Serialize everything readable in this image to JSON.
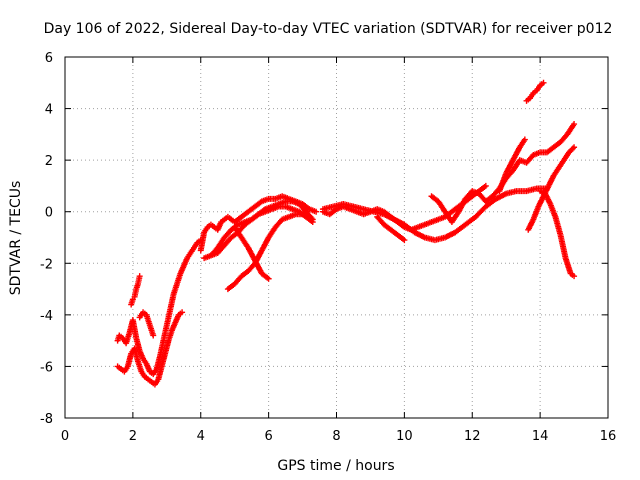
{
  "chart_data": {
    "type": "scatter",
    "title": "Day 106 of 2022, Sidereal Day-to-day VTEC variation (SDTVAR) for receiver p012",
    "xlabel": "GPS time / hours",
    "ylabel": "SDTVAR / TECUs",
    "xlim": [
      0,
      16
    ],
    "ylim": [
      -8,
      6
    ],
    "xticks": [
      0,
      2,
      4,
      6,
      8,
      10,
      12,
      14,
      16
    ],
    "yticks": [
      -8,
      -6,
      -4,
      -2,
      0,
      2,
      4,
      6
    ],
    "grid": true,
    "marker": "plus",
    "color": "#ff0000",
    "series": [
      {
        "x": [
          1.55,
          1.6,
          1.7,
          1.8,
          1.9,
          2.0,
          2.1,
          2.2,
          2.3,
          2.4,
          2.5,
          2.6,
          2.7,
          2.8,
          2.9,
          3.0,
          3.1,
          3.2,
          3.3,
          3.4,
          3.5,
          3.6,
          3.7,
          3.8,
          3.9,
          4.0
        ],
        "y": [
          -5.0,
          -4.8,
          -4.9,
          -5.1,
          -4.7,
          -4.2,
          -4.9,
          -5.4,
          -5.7,
          -5.9,
          -6.2,
          -6.3,
          -6.1,
          -5.6,
          -5.0,
          -4.4,
          -3.8,
          -3.2,
          -2.8,
          -2.4,
          -2.1,
          -1.8,
          -1.6,
          -1.4,
          -1.2,
          -1.1
        ]
      },
      {
        "x": [
          1.55,
          1.65,
          1.75,
          1.85,
          1.95,
          2.05,
          2.15,
          2.25,
          2.35,
          2.45,
          2.55,
          2.65,
          2.75,
          2.85,
          2.95,
          3.05,
          3.15,
          3.25,
          3.35,
          3.45
        ],
        "y": [
          -6.0,
          -6.1,
          -6.2,
          -6.0,
          -5.5,
          -5.3,
          -5.8,
          -6.2,
          -6.4,
          -6.5,
          -6.6,
          -6.7,
          -6.5,
          -6.0,
          -5.5,
          -5.0,
          -4.6,
          -4.3,
          -4.0,
          -3.9
        ]
      },
      {
        "x": [
          1.95,
          2.0,
          2.05,
          2.1,
          2.15,
          2.2
        ],
        "y": [
          -3.6,
          -3.4,
          -3.3,
          -3.0,
          -2.8,
          -2.5
        ]
      },
      {
        "x": [
          2.2,
          2.3,
          2.4,
          2.5,
          2.6
        ],
        "y": [
          -4.1,
          -3.9,
          -4.0,
          -4.4,
          -4.8
        ]
      },
      {
        "x": [
          4.0,
          4.1,
          4.2,
          4.3,
          4.4,
          4.5,
          4.6,
          4.7,
          4.8,
          4.9,
          5.0,
          5.2,
          5.4,
          5.6,
          5.8,
          6.0,
          6.2,
          6.4,
          6.6,
          6.8,
          7.0,
          7.2,
          7.4
        ],
        "y": [
          -1.5,
          -0.8,
          -0.6,
          -0.5,
          -0.6,
          -0.7,
          -0.4,
          -0.3,
          -0.2,
          -0.3,
          -0.4,
          -0.2,
          0.0,
          0.2,
          0.4,
          0.5,
          0.5,
          0.6,
          0.5,
          0.4,
          0.3,
          0.1,
          0.0
        ]
      },
      {
        "x": [
          4.1,
          4.3,
          4.5,
          4.7,
          4.9,
          5.1,
          5.3,
          5.5,
          5.7,
          5.9,
          6.1,
          6.3,
          6.5,
          6.7,
          6.9,
          7.1,
          7.3
        ],
        "y": [
          -1.8,
          -1.7,
          -1.6,
          -1.3,
          -1.0,
          -0.8,
          -0.5,
          -0.3,
          -0.1,
          0.1,
          0.2,
          0.3,
          0.4,
          0.4,
          0.3,
          0.0,
          -0.3
        ]
      },
      {
        "x": [
          4.3,
          4.5,
          4.7,
          4.9,
          5.1,
          5.3,
          5.5,
          5.7,
          5.9,
          6.1,
          6.3,
          6.5,
          6.7,
          6.9,
          7.1,
          7.3
        ],
        "y": [
          -1.7,
          -1.4,
          -1.0,
          -0.7,
          -0.5,
          -0.4,
          -0.3,
          -0.1,
          0.0,
          0.1,
          0.2,
          0.2,
          0.1,
          0.0,
          -0.2,
          -0.4
        ]
      },
      {
        "x": [
          4.8,
          5.0,
          5.2,
          5.4,
          5.6,
          5.8,
          6.0,
          6.2,
          6.4,
          6.6,
          6.8,
          7.0,
          7.2
        ],
        "y": [
          -3.0,
          -2.8,
          -2.5,
          -2.3,
          -2.0,
          -1.5,
          -1.0,
          -0.6,
          -0.3,
          -0.2,
          -0.1,
          -0.1,
          -0.2
        ]
      },
      {
        "x": [
          5.0,
          5.2,
          5.4,
          5.6,
          5.8,
          6.0
        ],
        "y": [
          -0.6,
          -1.0,
          -1.4,
          -1.9,
          -2.4,
          -2.6
        ]
      },
      {
        "x": [
          7.6,
          7.8,
          8.0,
          8.2,
          8.4,
          8.6,
          8.8,
          9.0,
          9.2,
          9.4,
          9.6,
          9.8,
          10.0,
          10.2,
          10.4,
          10.6,
          10.8,
          11.0,
          11.2,
          11.4,
          11.6,
          11.8,
          12.0,
          12.2,
          12.4
        ],
        "y": [
          0.0,
          -0.1,
          0.1,
          0.2,
          0.1,
          0.0,
          -0.1,
          0.0,
          0.1,
          0.0,
          -0.2,
          -0.4,
          -0.6,
          -0.7,
          -0.6,
          -0.5,
          -0.4,
          -0.3,
          -0.2,
          0.0,
          0.2,
          0.4,
          0.6,
          0.8,
          1.0
        ]
      },
      {
        "x": [
          7.6,
          7.9,
          8.2,
          8.5,
          8.8,
          9.1,
          9.4,
          9.7,
          10.0,
          10.3,
          10.6,
          10.9,
          11.2,
          11.5,
          11.8,
          12.1,
          12.4,
          12.7,
          13.0,
          13.3,
          13.6,
          13.9,
          14.2
        ],
        "y": [
          0.1,
          0.2,
          0.3,
          0.2,
          0.1,
          0.0,
          -0.1,
          -0.3,
          -0.5,
          -0.8,
          -1.0,
          -1.1,
          -1.0,
          -0.8,
          -0.5,
          -0.2,
          0.2,
          0.5,
          0.7,
          0.8,
          0.8,
          0.9,
          0.9
        ]
      },
      {
        "x": [
          9.2,
          9.4,
          9.6,
          9.8,
          10.0
        ],
        "y": [
          -0.2,
          -0.5,
          -0.7,
          -0.9,
          -1.1
        ]
      },
      {
        "x": [
          10.8,
          11.0,
          11.2,
          11.4,
          11.6,
          11.8,
          12.0,
          12.2,
          12.4,
          12.6,
          12.8,
          13.0,
          13.2,
          13.4,
          13.6,
          13.8,
          14.0,
          14.2,
          14.4,
          14.6,
          14.8,
          15.0
        ],
        "y": [
          0.6,
          0.4,
          0.0,
          -0.4,
          0.0,
          0.5,
          0.8,
          0.7,
          0.4,
          0.6,
          0.9,
          1.3,
          1.6,
          2.0,
          1.9,
          2.2,
          2.3,
          2.3,
          2.5,
          2.7,
          3.0,
          3.4
        ]
      },
      {
        "x": [
          12.8,
          13.0,
          13.2,
          13.4,
          13.55
        ],
        "y": [
          0.8,
          1.5,
          2.0,
          2.5,
          2.8
        ]
      },
      {
        "x": [
          13.6,
          13.7,
          13.8,
          13.9,
          14.0,
          14.1
        ],
        "y": [
          4.3,
          4.4,
          4.6,
          4.7,
          4.9,
          5.0
        ]
      },
      {
        "x": [
          13.65,
          13.8,
          13.95,
          14.1,
          14.25,
          14.4,
          14.55,
          14.7,
          14.85,
          15.0
        ],
        "y": [
          -0.7,
          -0.3,
          0.2,
          0.6,
          1.0,
          1.4,
          1.7,
          2.0,
          2.3,
          2.5
        ]
      },
      {
        "x": [
          14.0,
          14.15,
          14.3,
          14.45,
          14.6,
          14.75,
          14.9,
          15.0
        ],
        "y": [
          0.8,
          0.7,
          0.3,
          -0.2,
          -0.9,
          -1.8,
          -2.4,
          -2.5
        ]
      }
    ]
  }
}
